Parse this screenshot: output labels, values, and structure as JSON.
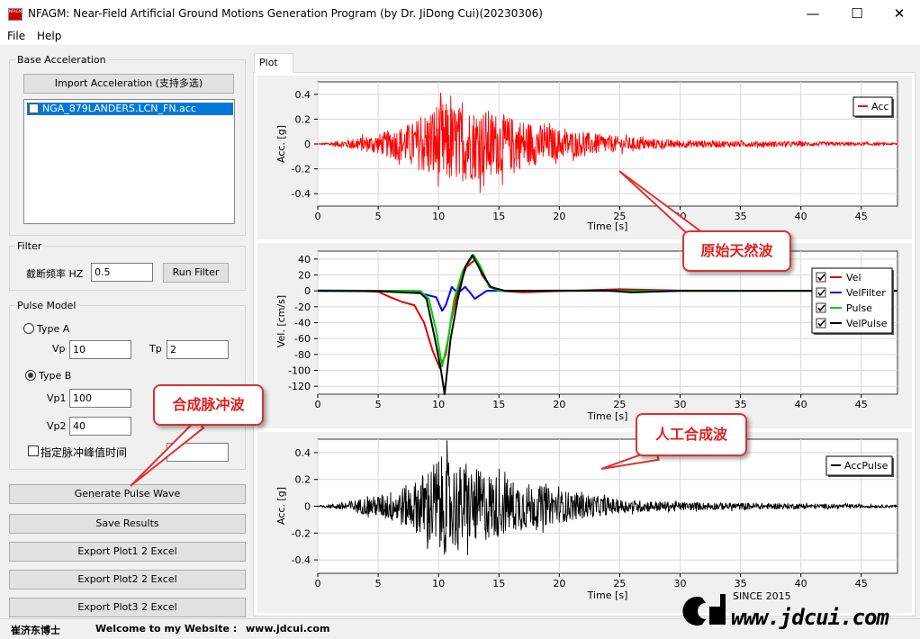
{
  "window": {
    "icon_text": "NFAGM",
    "title": "NFAGM: Near-Field Artificial Ground Motions Generation Program (by Dr. JiDong Cui)(20230306)",
    "minimize": "—",
    "maximize": "☐",
    "close": "✕"
  },
  "menu": {
    "file": "File",
    "help": "Help"
  },
  "base_accel": {
    "group_label": "Base Acceleration",
    "import_button": "Import Acceleration (支持多选)",
    "file_item": "NGA_879LANDERS.LCN_FN.acc"
  },
  "filter": {
    "group_label": "Filter",
    "cutoff_label": "截断频率 HZ",
    "cutoff_value": "0.5",
    "run_button": "Run Filter"
  },
  "pulse_model": {
    "group_label": "Pulse Model",
    "type_a_label": "Type A",
    "type_a_selected": false,
    "vp_label": "Vp",
    "vp_value": "10",
    "tp_label": "Tp",
    "tp_value": "2",
    "type_b_label": "Type B",
    "type_b_selected": true,
    "vp1_label": "Vp1",
    "vp1_value": "100",
    "vp2_label": "Vp2",
    "vp2_value": "40",
    "peak_time_label": "指定脉冲峰值时间",
    "peak_time_checked": false
  },
  "actions": {
    "generate": "Generate Pulse Wave",
    "save": "Save Results",
    "export1": "Export Plot1 2 Excel",
    "export2": "Export Plot2 2 Excel",
    "export3": "Export Plot3 2 Excel"
  },
  "tab": {
    "label": "Plot"
  },
  "status": {
    "name": "崔济东博士",
    "welcome": "Welcome to my Website :",
    "url": "www.jdcui.com"
  },
  "callouts": {
    "original": "原始天然波",
    "pulse": "合成脉冲波",
    "artificial": "人工合成波"
  },
  "watermark": {
    "since": "SINCE 2015",
    "site": "www.jdcui.com"
  },
  "colors": {
    "acc": "#ff0000",
    "vel": "#e00000",
    "velfilter": "#0000ff",
    "pulse": "#00cc00",
    "velpulse": "#000000"
  },
  "chart_data": [
    {
      "type": "line",
      "xlabel": "Time [s]",
      "ylabel": "Acc. [g]",
      "xlim": [
        0,
        48
      ],
      "ylim": [
        -0.5,
        0.5
      ],
      "xticks": [
        0,
        5,
        10,
        15,
        20,
        25,
        30,
        35,
        40,
        45
      ],
      "yticks": [
        0.4,
        0.2,
        0,
        -0.2,
        -0.4
      ],
      "ytick_labels": [
        "0.4",
        "0.2",
        "0",
        "-0.2",
        "-0.4"
      ],
      "grid": true,
      "legend_position": "top-right",
      "series": [
        {
          "name": "Acc",
          "color": "#ff0000",
          "kind": "noise",
          "t_end": 48,
          "envelope": [
            [
              0,
              0.002
            ],
            [
              2,
              0.03
            ],
            [
              5,
              0.08
            ],
            [
              8,
              0.18
            ],
            [
              10,
              0.35
            ],
            [
              12,
              0.3
            ],
            [
              14,
              0.28
            ],
            [
              16,
              0.22
            ],
            [
              20,
              0.12
            ],
            [
              25,
              0.06
            ],
            [
              30,
              0.03
            ],
            [
              40,
              0.02
            ],
            [
              48,
              0.01
            ]
          ]
        }
      ]
    },
    {
      "type": "line",
      "xlabel": "Time [s]",
      "ylabel": "Vel. [cm/s]",
      "xlim": [
        0,
        48
      ],
      "ylim": [
        -130,
        50
      ],
      "xticks": [
        0,
        5,
        10,
        15,
        20,
        25,
        30,
        35,
        40,
        45
      ],
      "yticks": [
        40,
        20,
        0,
        -20,
        -40,
        -60,
        -80,
        -100,
        -120
      ],
      "ytick_labels": [
        "40",
        "20",
        "0",
        "-20",
        "-40",
        "-60",
        "-80",
        "-100",
        "-120"
      ],
      "grid": true,
      "legend_position": "right",
      "series": [
        {
          "name": "Vel",
          "color": "#e00000",
          "kind": "curve",
          "points": [
            [
              0,
              0
            ],
            [
              3,
              0
            ],
            [
              5,
              -1
            ],
            [
              6,
              -8
            ],
            [
              7,
              -14
            ],
            [
              8,
              -18
            ],
            [
              8.8,
              -40
            ],
            [
              9.5,
              -75
            ],
            [
              10.1,
              -97
            ],
            [
              10.6,
              -80
            ],
            [
              11,
              -40
            ],
            [
              11.6,
              0
            ],
            [
              12.3,
              30
            ],
            [
              13.1,
              40
            ],
            [
              13.6,
              20
            ],
            [
              14.3,
              5
            ],
            [
              15.3,
              0
            ],
            [
              17,
              -2
            ],
            [
              20,
              0
            ],
            [
              25,
              2
            ],
            [
              30,
              0
            ],
            [
              48,
              0
            ]
          ]
        },
        {
          "name": "VelFilter",
          "color": "#0000ff",
          "kind": "curve",
          "points": [
            [
              0,
              0
            ],
            [
              8,
              0
            ],
            [
              9,
              -5
            ],
            [
              9.8,
              -8
            ],
            [
              10.3,
              -25
            ],
            [
              10.6,
              -18
            ],
            [
              11.1,
              5
            ],
            [
              11.6,
              -3
            ],
            [
              12.2,
              5
            ],
            [
              12.6,
              -2
            ],
            [
              13,
              -10
            ],
            [
              13.5,
              -5
            ],
            [
              14,
              0
            ],
            [
              48,
              0
            ]
          ]
        },
        {
          "name": "Pulse",
          "color": "#00cc00",
          "kind": "curve",
          "points": [
            [
              0,
              0
            ],
            [
              8.5,
              0
            ],
            [
              9.2,
              -10
            ],
            [
              9.8,
              -50
            ],
            [
              10.3,
              -95
            ],
            [
              10.8,
              -60
            ],
            [
              11.3,
              -10
            ],
            [
              12,
              25
            ],
            [
              12.9,
              45
            ],
            [
              13.5,
              30
            ],
            [
              14.2,
              5
            ],
            [
              15,
              0
            ],
            [
              48,
              0
            ]
          ]
        },
        {
          "name": "VelPulse",
          "color": "#000000",
          "kind": "curve",
          "points": [
            [
              0,
              0
            ],
            [
              5,
              0
            ],
            [
              7,
              -2
            ],
            [
              8.5,
              -3
            ],
            [
              9,
              -10
            ],
            [
              9.7,
              -60
            ],
            [
              10.2,
              -100
            ],
            [
              10.5,
              -130
            ],
            [
              11,
              -60
            ],
            [
              11.6,
              -10
            ],
            [
              12.2,
              30
            ],
            [
              12.8,
              45
            ],
            [
              13.5,
              25
            ],
            [
              14.3,
              5
            ],
            [
              15.5,
              0
            ],
            [
              20,
              0
            ],
            [
              24,
              0
            ],
            [
              26,
              -2
            ],
            [
              30,
              0
            ],
            [
              48,
              0
            ]
          ]
        }
      ]
    },
    {
      "type": "line",
      "xlabel": "Time [s]",
      "ylabel": "Acc. [g]",
      "xlim": [
        0,
        48
      ],
      "ylim": [
        -0.5,
        0.5
      ],
      "xticks": [
        0,
        5,
        10,
        15,
        20,
        25,
        30,
        35,
        40,
        45
      ],
      "yticks": [
        0.4,
        0.2,
        0,
        -0.2,
        -0.4
      ],
      "ytick_labels": [
        "0.4",
        "0.2",
        "0",
        "-0.2",
        "-0.4"
      ],
      "grid": true,
      "legend_position": "top-right",
      "series": [
        {
          "name": "AccPulse",
          "color": "#000000",
          "kind": "noise",
          "t_end": 48,
          "envelope": [
            [
              0,
              0.002
            ],
            [
              2,
              0.03
            ],
            [
              5,
              0.08
            ],
            [
              8,
              0.18
            ],
            [
              10,
              0.38
            ],
            [
              12,
              0.3
            ],
            [
              14,
              0.26
            ],
            [
              16,
              0.2
            ],
            [
              20,
              0.12
            ],
            [
              25,
              0.05
            ],
            [
              30,
              0.03
            ],
            [
              40,
              0.02
            ],
            [
              48,
              0.01
            ]
          ]
        }
      ]
    }
  ]
}
